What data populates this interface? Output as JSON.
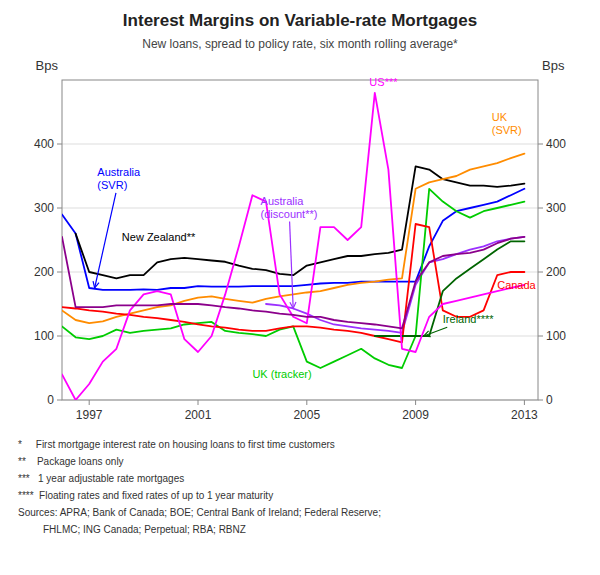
{
  "chart_data": {
    "type": "line",
    "title": "Interest Margins on Variable-rate Mortgages",
    "subtitle": "New loans, spread to policy rate, six month rolling average*",
    "y_label": "Bps",
    "y2_label": "Bps",
    "xlim": [
      1996.0,
      2013.5
    ],
    "xticks": [
      1997,
      2001,
      2005,
      2009,
      2013
    ],
    "ylim": [
      0,
      500
    ],
    "yticks": [
      0,
      100,
      200,
      300,
      400
    ],
    "y2lim": [
      0,
      500
    ],
    "y2ticks": [
      0,
      100,
      200,
      300,
      400
    ],
    "grid": true,
    "x": [
      1996.0,
      1996.5,
      1997.0,
      1997.5,
      1998.0,
      1998.5,
      1999.0,
      1999.5,
      2000.0,
      2000.5,
      2001.0,
      2001.5,
      2002.0,
      2002.5,
      2003.0,
      2003.5,
      2004.0,
      2004.5,
      2005.0,
      2005.5,
      2006.0,
      2006.5,
      2007.0,
      2007.5,
      2008.0,
      2008.5,
      2009.0,
      2009.5,
      2010.0,
      2010.5,
      2011.0,
      2011.5,
      2012.0,
      2012.5,
      2013.0
    ],
    "series": [
      {
        "color": "#0000FF",
        "values": [
          290,
          260,
          175,
          172,
          172,
          172,
          173,
          172,
          175,
          175,
          178,
          177,
          177,
          177,
          178,
          178,
          178,
          178,
          180,
          182,
          183,
          183,
          185,
          185,
          185,
          185,
          185,
          240,
          280,
          295,
          300,
          305,
          310,
          320,
          330
        ]
      },
      {
        "color": "#9B30FF",
        "values": [
          null,
          null,
          null,
          null,
          null,
          null,
          null,
          null,
          null,
          null,
          null,
          null,
          null,
          null,
          null,
          150,
          148,
          143,
          135,
          125,
          118,
          115,
          112,
          110,
          108,
          105,
          180,
          215,
          220,
          228,
          235,
          240,
          248,
          252,
          255
        ]
      },
      {
        "color": "#000000",
        "values": [
          null,
          260,
          200,
          195,
          190,
          195,
          195,
          215,
          220,
          222,
          220,
          218,
          216,
          210,
          205,
          203,
          197,
          195,
          210,
          215,
          220,
          225,
          225,
          228,
          230,
          235,
          365,
          360,
          345,
          340,
          335,
          335,
          333,
          335,
          338
        ]
      },
      {
        "color": "#FF8C00",
        "values": [
          140,
          125,
          120,
          123,
          130,
          135,
          140,
          145,
          148,
          155,
          160,
          162,
          158,
          155,
          152,
          158,
          162,
          165,
          168,
          170,
          175,
          180,
          183,
          185,
          188,
          190,
          330,
          340,
          345,
          350,
          360,
          365,
          370,
          378,
          385
        ]
      },
      {
        "color": "#00CC00",
        "values": [
          115,
          98,
          95,
          100,
          110,
          105,
          108,
          110,
          112,
          118,
          120,
          122,
          108,
          105,
          103,
          100,
          110,
          115,
          60,
          50,
          60,
          70,
          80,
          65,
          55,
          50,
          100,
          330,
          310,
          295,
          285,
          295,
          300,
          305,
          310
        ]
      },
      {
        "color": "#FF0000",
        "values": [
          145,
          143,
          140,
          138,
          135,
          133,
          130,
          128,
          125,
          122,
          118,
          115,
          113,
          110,
          108,
          108,
          112,
          115,
          115,
          113,
          110,
          108,
          105,
          100,
          95,
          90,
          275,
          270,
          140,
          130,
          130,
          140,
          195,
          200,
          200
        ]
      },
      {
        "color": "#006400",
        "values": [
          null,
          null,
          null,
          null,
          null,
          null,
          null,
          null,
          null,
          null,
          null,
          null,
          null,
          null,
          null,
          null,
          null,
          null,
          null,
          null,
          null,
          null,
          null,
          100,
          100,
          100,
          100,
          100,
          170,
          190,
          205,
          220,
          235,
          248,
          248
        ]
      },
      {
        "color": "#FF00FF",
        "values": [
          40,
          0,
          25,
          60,
          80,
          140,
          165,
          170,
          165,
          95,
          75,
          100,
          165,
          240,
          320,
          310,
          165,
          130,
          120,
          270,
          270,
          250,
          270,
          480,
          360,
          80,
          75,
          130,
          150,
          155,
          160,
          165,
          170,
          175,
          180
        ]
      },
      {
        "color": "#8B008B",
        "values": [
          255,
          145,
          145,
          145,
          148,
          148,
          148,
          148,
          150,
          150,
          150,
          148,
          145,
          143,
          140,
          138,
          135,
          133,
          130,
          130,
          125,
          122,
          120,
          118,
          115,
          112,
          185,
          215,
          225,
          228,
          230,
          235,
          245,
          252,
          255
        ]
      }
    ],
    "annotations": [
      {
        "text": "Australia\n(SVR)",
        "color": "#0000FF",
        "x": 1997.3,
        "y": 330,
        "arrow_x": 1997.2,
        "arrow_y": 175
      },
      {
        "text": "New Zealand**",
        "color": "#000000",
        "x": 1998.2,
        "y": 248
      },
      {
        "text": "Australia\n(discount**)",
        "color": "#9B30FF",
        "x": 2003.3,
        "y": 285,
        "arrow_x": 2004.5,
        "arrow_y": 143
      },
      {
        "text": "US***",
        "color": "#FF00FF",
        "x": 2007.3,
        "y": 490
      },
      {
        "text": "UK\n(SVR)",
        "color": "#FF8C00",
        "x": 2011.8,
        "y": 415
      },
      {
        "text": "Canada",
        "color": "#FF0000",
        "x": 2012.0,
        "y": 173
      },
      {
        "text": "UK (tracker)",
        "color": "#00CC00",
        "x": 2003.0,
        "y": 35
      },
      {
        "text": "Ireland****",
        "color": "#006400",
        "x": 2010.0,
        "y": 120,
        "arrow_x": 2009.3,
        "arrow_y": 100
      }
    ],
    "footnotes": [
      "*     First mortgage interest rate on housing loans to first time customers",
      "**    Package loans only",
      "***   1 year adjustable rate mortgages",
      "****  Floating rates and fixed rates of up to 1 year maturity",
      "Sources: APRA; Bank of Canada; BOE; Central Bank of Ireland; Federal Reserve;",
      "         FHLMC; ING Canada; Perpetual; RBA; RBNZ"
    ]
  }
}
